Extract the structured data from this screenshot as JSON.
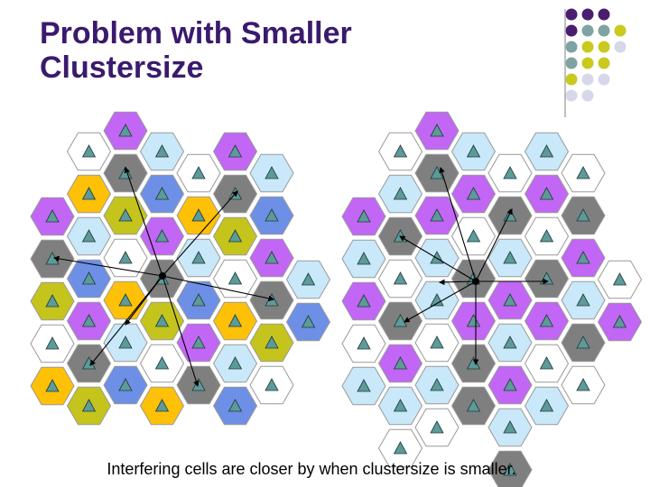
{
  "title": {
    "line1": "Problem with Smaller",
    "line2": "Clustersize"
  },
  "caption": "Interfering cells are closer by when clustersize is smaller.",
  "colors": {
    "title": "#3a1a6e",
    "purple": "#c266f5",
    "lightblue": "#c9e8fa",
    "white": "#ffffff",
    "gray": "#7f7f7f",
    "yellow": "#ffc107",
    "olive": "#c4c41c",
    "blue": "#6d8fe6",
    "triangle": "#5d9a9a",
    "hex_stroke": "#999999",
    "dot_dark": "#4a1d6e",
    "dot_teal": "#7fa3a3",
    "dot_olive": "#c9c91e",
    "dot_light": "#d6d8ea"
  },
  "icons": {
    "cell_marker": "triangle-icon",
    "interference_link": "arrow-icon"
  }
}
